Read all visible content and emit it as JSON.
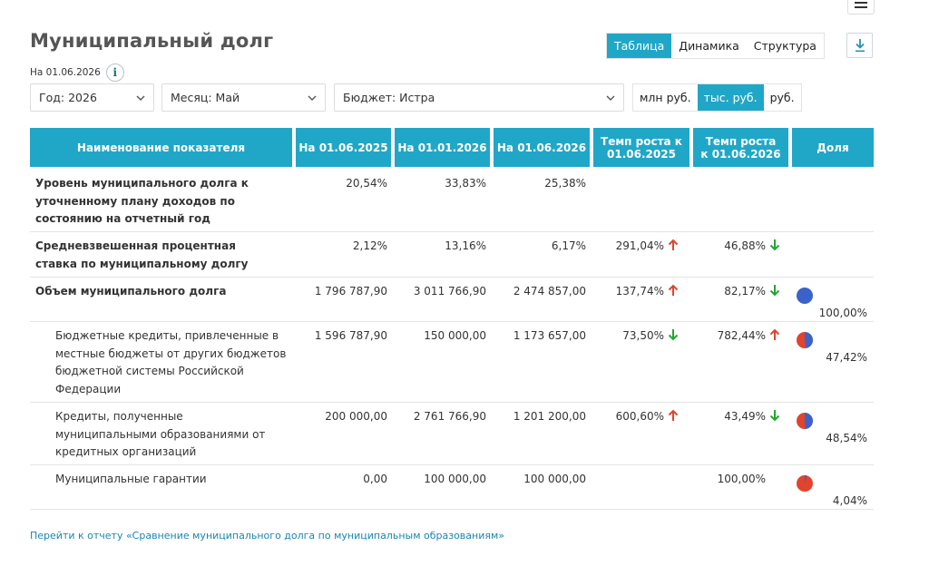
{
  "page": {
    "title": "Муниципальный долг",
    "date_label": "На 01.06.2026",
    "info_glyph": "i"
  },
  "view_tabs": [
    {
      "label": "Таблица",
      "active": true
    },
    {
      "label": "Динамика",
      "active": false
    },
    {
      "label": "Структура",
      "active": false
    }
  ],
  "filters": {
    "year": "Год: 2026",
    "month": "Месяц: Май",
    "budget": "Бюджет: Истра"
  },
  "units": [
    {
      "label": "млн руб.",
      "active": false
    },
    {
      "label": "тыс. руб.",
      "active": true
    },
    {
      "label": "руб.",
      "active": false
    }
  ],
  "table": {
    "headers": [
      "Наименование показателя",
      "На 01.06.2025",
      "На 01.01.2026",
      "На 01.06.2026",
      "Темп роста к 01.06.2025",
      "Темп роста к 01.06.2026",
      "Доля"
    ],
    "rows": [
      {
        "name": "Уровень муниципального долга к уточненному плану доходов по состоянию на отчетный год",
        "bold": true,
        "indent": false,
        "v1": "20,54%",
        "v2": "33,83%",
        "v3": "25,38%",
        "g1": "",
        "g1_dir": "",
        "g2": "",
        "g2_dir": "",
        "share": "",
        "share_pct": null
      },
      {
        "name": "Средневзвешенная процентная ставка по муниципальному долгу",
        "bold": true,
        "indent": false,
        "v1": "2,12%",
        "v2": "13,16%",
        "v3": "6,17%",
        "g1": "291,04%",
        "g1_dir": "up",
        "g2": "46,88%",
        "g2_dir": "down",
        "share": "",
        "share_pct": null
      },
      {
        "name": "Объем муниципального долга",
        "bold": true,
        "indent": false,
        "v1": "1 796 787,90",
        "v2": "3 011 766,90",
        "v3": "2 474 857,00",
        "g1": "137,74%",
        "g1_dir": "up",
        "g2": "82,17%",
        "g2_dir": "down",
        "share": "100,00%",
        "share_pct": 100
      },
      {
        "name": "Бюджетные кредиты, привлеченные в местные бюджеты от других бюджетов бюджетной системы Российской Федерации",
        "bold": false,
        "indent": true,
        "v1": "1 596 787,90",
        "v2": "150 000,00",
        "v3": "1 173 657,00",
        "g1": "73,50%",
        "g1_dir": "down",
        "g2": "782,44%",
        "g2_dir": "up",
        "share": "47,42%",
        "share_pct": 47.42
      },
      {
        "name": "Кредиты, полученные муниципальными образованиями от кредитных организаций",
        "bold": false,
        "indent": true,
        "v1": "200 000,00",
        "v2": "2 761 766,90",
        "v3": "1 201 200,00",
        "g1": "600,60%",
        "g1_dir": "up",
        "g2": "43,49%",
        "g2_dir": "down",
        "share": "48,54%",
        "share_pct": 48.54
      },
      {
        "name": "Муниципальные гарантии",
        "bold": false,
        "indent": true,
        "v1": "0,00",
        "v2": "100 000,00",
        "v3": "100 000,00",
        "g1": "",
        "g1_dir": "",
        "g2": "100,00%",
        "g2_dir": "",
        "share": "4,04%",
        "share_pct": 4.04
      }
    ]
  },
  "report_link": "Перейти к отчету «Сравнение муниципального долга по муниципальным образованиям»",
  "colors": {
    "accent": "#20a7c8",
    "arrow_up": "#e0442c",
    "arrow_down": "#1fa830",
    "pie_blue": "#3a62c9",
    "pie_red": "#e0442c"
  }
}
